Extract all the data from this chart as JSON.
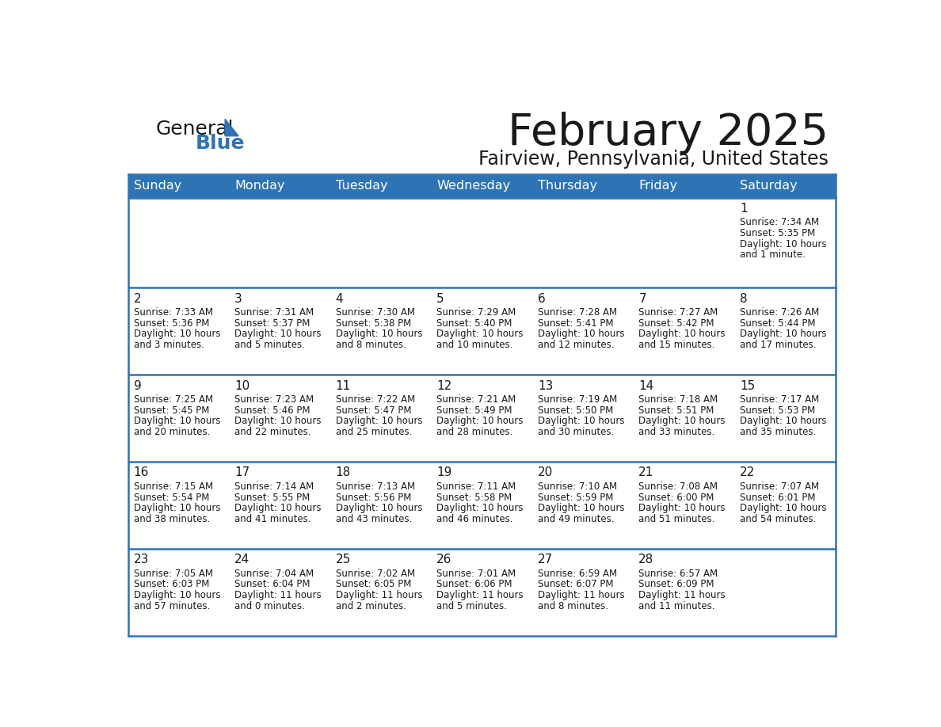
{
  "title": "February 2025",
  "subtitle": "Fairview, Pennsylvania, United States",
  "header_bg": "#2E74B5",
  "header_text": "#FFFFFF",
  "cell_bg": "#FFFFFF",
  "grid_line_color": "#2E74B5",
  "separator_color": "#5B9BD5",
  "day_names": [
    "Sunday",
    "Monday",
    "Tuesday",
    "Wednesday",
    "Thursday",
    "Friday",
    "Saturday"
  ],
  "logo_general_color": "#1a1a1a",
  "logo_blue_color": "#2E74B5",
  "days": [
    {
      "day": 1,
      "col": 6,
      "row": 0,
      "sunrise": "7:34 AM",
      "sunset": "5:35 PM",
      "daylight": "10 hours and 1 minute."
    },
    {
      "day": 2,
      "col": 0,
      "row": 1,
      "sunrise": "7:33 AM",
      "sunset": "5:36 PM",
      "daylight": "10 hours and 3 minutes."
    },
    {
      "day": 3,
      "col": 1,
      "row": 1,
      "sunrise": "7:31 AM",
      "sunset": "5:37 PM",
      "daylight": "10 hours and 5 minutes."
    },
    {
      "day": 4,
      "col": 2,
      "row": 1,
      "sunrise": "7:30 AM",
      "sunset": "5:38 PM",
      "daylight": "10 hours and 8 minutes."
    },
    {
      "day": 5,
      "col": 3,
      "row": 1,
      "sunrise": "7:29 AM",
      "sunset": "5:40 PM",
      "daylight": "10 hours and 10 minutes."
    },
    {
      "day": 6,
      "col": 4,
      "row": 1,
      "sunrise": "7:28 AM",
      "sunset": "5:41 PM",
      "daylight": "10 hours and 12 minutes."
    },
    {
      "day": 7,
      "col": 5,
      "row": 1,
      "sunrise": "7:27 AM",
      "sunset": "5:42 PM",
      "daylight": "10 hours and 15 minutes."
    },
    {
      "day": 8,
      "col": 6,
      "row": 1,
      "sunrise": "7:26 AM",
      "sunset": "5:44 PM",
      "daylight": "10 hours and 17 minutes."
    },
    {
      "day": 9,
      "col": 0,
      "row": 2,
      "sunrise": "7:25 AM",
      "sunset": "5:45 PM",
      "daylight": "10 hours and 20 minutes."
    },
    {
      "day": 10,
      "col": 1,
      "row": 2,
      "sunrise": "7:23 AM",
      "sunset": "5:46 PM",
      "daylight": "10 hours and 22 minutes."
    },
    {
      "day": 11,
      "col": 2,
      "row": 2,
      "sunrise": "7:22 AM",
      "sunset": "5:47 PM",
      "daylight": "10 hours and 25 minutes."
    },
    {
      "day": 12,
      "col": 3,
      "row": 2,
      "sunrise": "7:21 AM",
      "sunset": "5:49 PM",
      "daylight": "10 hours and 28 minutes."
    },
    {
      "day": 13,
      "col": 4,
      "row": 2,
      "sunrise": "7:19 AM",
      "sunset": "5:50 PM",
      "daylight": "10 hours and 30 minutes."
    },
    {
      "day": 14,
      "col": 5,
      "row": 2,
      "sunrise": "7:18 AM",
      "sunset": "5:51 PM",
      "daylight": "10 hours and 33 minutes."
    },
    {
      "day": 15,
      "col": 6,
      "row": 2,
      "sunrise": "7:17 AM",
      "sunset": "5:53 PM",
      "daylight": "10 hours and 35 minutes."
    },
    {
      "day": 16,
      "col": 0,
      "row": 3,
      "sunrise": "7:15 AM",
      "sunset": "5:54 PM",
      "daylight": "10 hours and 38 minutes."
    },
    {
      "day": 17,
      "col": 1,
      "row": 3,
      "sunrise": "7:14 AM",
      "sunset": "5:55 PM",
      "daylight": "10 hours and 41 minutes."
    },
    {
      "day": 18,
      "col": 2,
      "row": 3,
      "sunrise": "7:13 AM",
      "sunset": "5:56 PM",
      "daylight": "10 hours and 43 minutes."
    },
    {
      "day": 19,
      "col": 3,
      "row": 3,
      "sunrise": "7:11 AM",
      "sunset": "5:58 PM",
      "daylight": "10 hours and 46 minutes."
    },
    {
      "day": 20,
      "col": 4,
      "row": 3,
      "sunrise": "7:10 AM",
      "sunset": "5:59 PM",
      "daylight": "10 hours and 49 minutes."
    },
    {
      "day": 21,
      "col": 5,
      "row": 3,
      "sunrise": "7:08 AM",
      "sunset": "6:00 PM",
      "daylight": "10 hours and 51 minutes."
    },
    {
      "day": 22,
      "col": 6,
      "row": 3,
      "sunrise": "7:07 AM",
      "sunset": "6:01 PM",
      "daylight": "10 hours and 54 minutes."
    },
    {
      "day": 23,
      "col": 0,
      "row": 4,
      "sunrise": "7:05 AM",
      "sunset": "6:03 PM",
      "daylight": "10 hours and 57 minutes."
    },
    {
      "day": 24,
      "col": 1,
      "row": 4,
      "sunrise": "7:04 AM",
      "sunset": "6:04 PM",
      "daylight": "11 hours and 0 minutes."
    },
    {
      "day": 25,
      "col": 2,
      "row": 4,
      "sunrise": "7:02 AM",
      "sunset": "6:05 PM",
      "daylight": "11 hours and 2 minutes."
    },
    {
      "day": 26,
      "col": 3,
      "row": 4,
      "sunrise": "7:01 AM",
      "sunset": "6:06 PM",
      "daylight": "11 hours and 5 minutes."
    },
    {
      "day": 27,
      "col": 4,
      "row": 4,
      "sunrise": "6:59 AM",
      "sunset": "6:07 PM",
      "daylight": "11 hours and 8 minutes."
    },
    {
      "day": 28,
      "col": 5,
      "row": 4,
      "sunrise": "6:57 AM",
      "sunset": "6:09 PM",
      "daylight": "11 hours and 11 minutes."
    }
  ]
}
